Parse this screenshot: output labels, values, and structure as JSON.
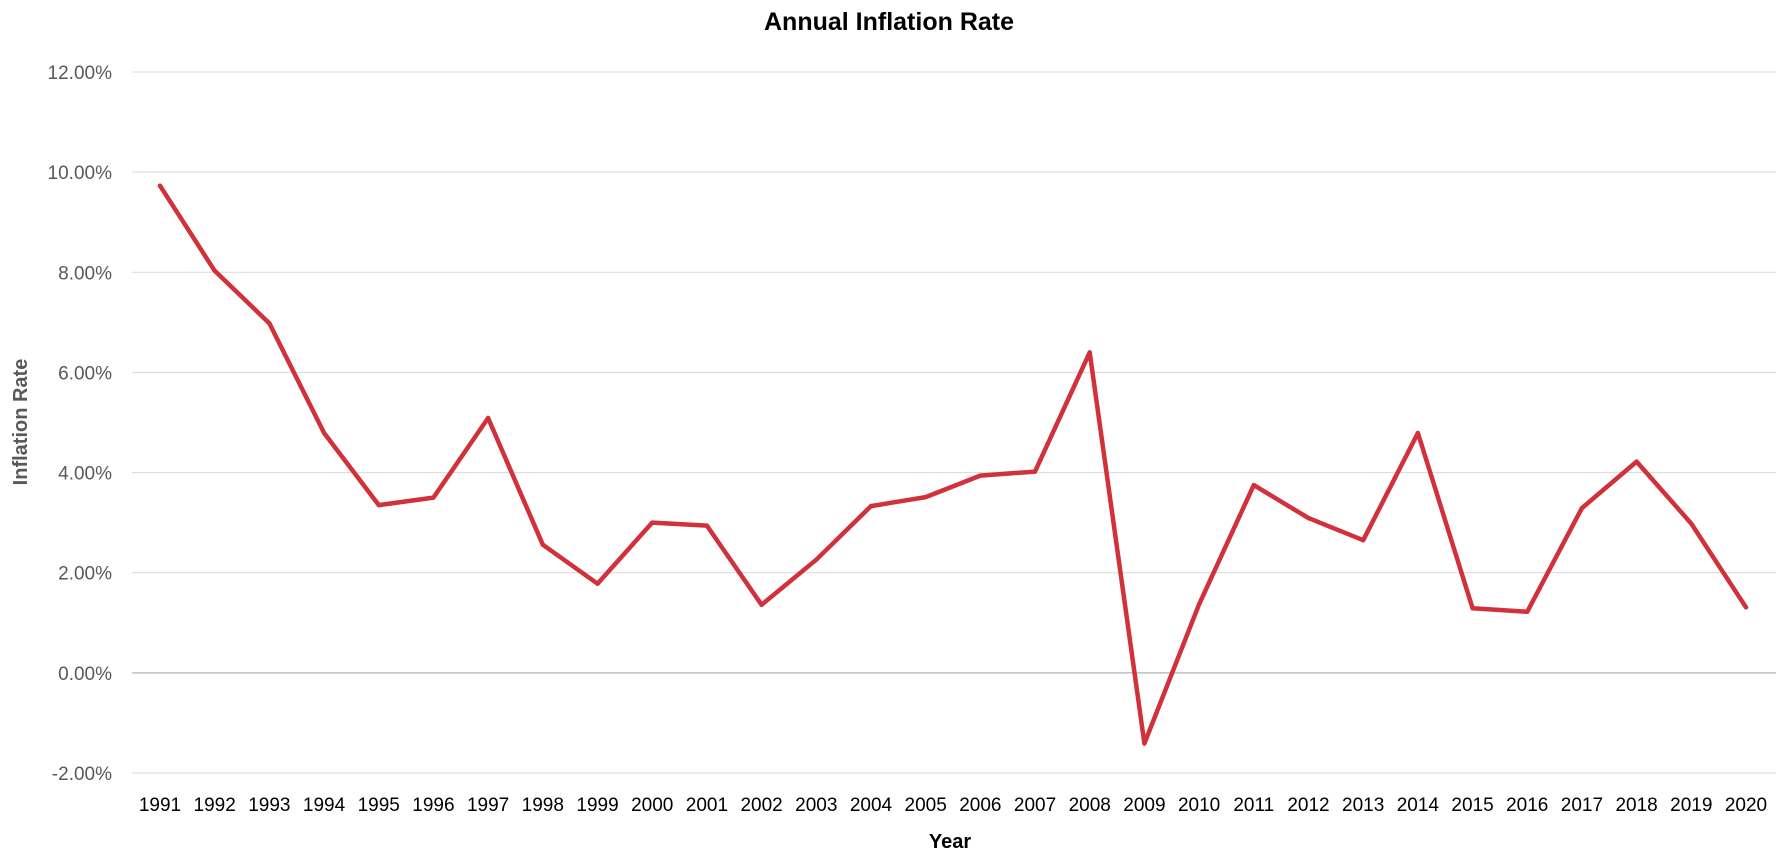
{
  "chart_data": {
    "type": "line",
    "title": "Annual Inflation Rate",
    "xlabel": "Year",
    "ylabel": "Inflation Rate",
    "ylim": [
      -2,
      12
    ],
    "ytick_step": 2,
    "ytick_labels": [
      "-2.00%",
      "0.00%",
      "2.00%",
      "4.00%",
      "6.00%",
      "8.00%",
      "10.00%",
      "12.00%"
    ],
    "grid": true,
    "legend": "none",
    "categories": [
      "1991",
      "1992",
      "1993",
      "1994",
      "1995",
      "1996",
      "1997",
      "1998",
      "1999",
      "2000",
      "2001",
      "2002",
      "2003",
      "2004",
      "2005",
      "2006",
      "2007",
      "2008",
      "2009",
      "2010",
      "2011",
      "2012",
      "2013",
      "2014",
      "2015",
      "2016",
      "2017",
      "2018",
      "2019",
      "2020"
    ],
    "series": [
      {
        "color": "#d0313a",
        "values": [
          9.73,
          8.03,
          6.98,
          4.79,
          3.35,
          3.5,
          5.09,
          2.56,
          1.78,
          3.0,
          2.94,
          1.36,
          2.26,
          3.33,
          3.51,
          3.94,
          4.02,
          6.4,
          -1.41,
          1.37,
          3.75,
          3.09,
          2.65,
          4.79,
          1.29,
          1.22,
          3.29,
          4.22,
          2.98,
          1.31
        ]
      }
    ]
  }
}
